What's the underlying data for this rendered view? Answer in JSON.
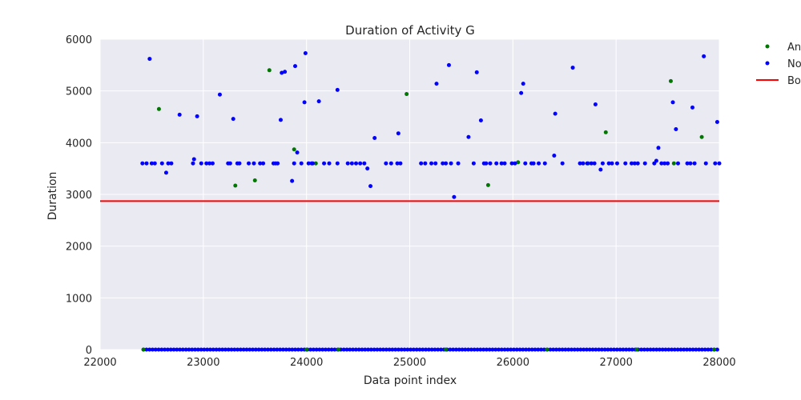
{
  "chart_data": {
    "type": "scatter",
    "title": "Duration of Activity G",
    "xlabel": "Data point index",
    "ylabel": "Duration",
    "xlim": [
      22000,
      28000
    ],
    "ylim": [
      0,
      6000
    ],
    "xticks": [
      22000,
      23000,
      24000,
      25000,
      26000,
      27000,
      28000
    ],
    "yticks": [
      0,
      1000,
      2000,
      3000,
      4000,
      5000,
      6000
    ],
    "grid": true,
    "legend_placement": "outside-top-right",
    "colors": {
      "anomaly": "#007700",
      "normal": "#0000ff",
      "boundary": "#ff0000",
      "background": "#eaeaf2",
      "grid": "#ffffff"
    },
    "series": [
      {
        "name": "An",
        "kind": "points",
        "color": "#007700",
        "points": [
          [
            22420,
            0
          ],
          [
            22570,
            4650
          ],
          [
            23310,
            3170
          ],
          [
            23500,
            3270
          ],
          [
            23640,
            5400
          ],
          [
            23880,
            3870
          ],
          [
            24000,
            0
          ],
          [
            24090,
            3600
          ],
          [
            24310,
            0
          ],
          [
            24970,
            4940
          ],
          [
            25350,
            0
          ],
          [
            25760,
            3180
          ],
          [
            26050,
            3620
          ],
          [
            26330,
            0
          ],
          [
            26730,
            3600
          ],
          [
            26900,
            4200
          ],
          [
            27200,
            0
          ],
          [
            27530,
            5190
          ],
          [
            27560,
            3600
          ],
          [
            27830,
            4110
          ],
          [
            27950,
            0
          ]
        ]
      },
      {
        "name": "No",
        "kind": "points",
        "color": "#0000ff",
        "points": [
          [
            22410,
            3600
          ],
          [
            22450,
            3600
          ],
          [
            22480,
            5620
          ],
          [
            22500,
            3600
          ],
          [
            22530,
            3600
          ],
          [
            22600,
            3600
          ],
          [
            22640,
            3420
          ],
          [
            22660,
            3600
          ],
          [
            22690,
            3600
          ],
          [
            22770,
            4540
          ],
          [
            22900,
            3600
          ],
          [
            22910,
            3680
          ],
          [
            22940,
            4510
          ],
          [
            22980,
            3600
          ],
          [
            23030,
            3600
          ],
          [
            23060,
            3600
          ],
          [
            23090,
            3600
          ],
          [
            23160,
            4930
          ],
          [
            23240,
            3600
          ],
          [
            23260,
            3600
          ],
          [
            23290,
            4460
          ],
          [
            23330,
            3600
          ],
          [
            23350,
            3600
          ],
          [
            23440,
            3600
          ],
          [
            23490,
            3600
          ],
          [
            23550,
            3600
          ],
          [
            23580,
            3600
          ],
          [
            23680,
            3600
          ],
          [
            23700,
            3600
          ],
          [
            23720,
            3600
          ],
          [
            23750,
            4440
          ],
          [
            23760,
            5350
          ],
          [
            23790,
            5370
          ],
          [
            23860,
            3260
          ],
          [
            23880,
            3600
          ],
          [
            23890,
            5480
          ],
          [
            23910,
            3810
          ],
          [
            23950,
            3600
          ],
          [
            23980,
            4780
          ],
          [
            23990,
            5730
          ],
          [
            24020,
            3600
          ],
          [
            24050,
            3600
          ],
          [
            24060,
            3600
          ],
          [
            24120,
            4800
          ],
          [
            24170,
            3600
          ],
          [
            24220,
            3600
          ],
          [
            24300,
            5020
          ],
          [
            24300,
            3600
          ],
          [
            24400,
            3600
          ],
          [
            24440,
            3600
          ],
          [
            24480,
            3600
          ],
          [
            24520,
            3600
          ],
          [
            24560,
            3600
          ],
          [
            24590,
            3500
          ],
          [
            24620,
            3160
          ],
          [
            24660,
            4090
          ],
          [
            24770,
            3600
          ],
          [
            24820,
            3600
          ],
          [
            24880,
            3600
          ],
          [
            24890,
            4180
          ],
          [
            24910,
            3600
          ],
          [
            25110,
            3600
          ],
          [
            25150,
            3600
          ],
          [
            25210,
            3600
          ],
          [
            25250,
            3600
          ],
          [
            25260,
            5140
          ],
          [
            25320,
            3600
          ],
          [
            25350,
            3600
          ],
          [
            25380,
            5500
          ],
          [
            25400,
            3600
          ],
          [
            25430,
            2950
          ],
          [
            25470,
            3600
          ],
          [
            25570,
            4110
          ],
          [
            25620,
            3600
          ],
          [
            25650,
            5360
          ],
          [
            25690,
            4430
          ],
          [
            25720,
            3600
          ],
          [
            25740,
            3600
          ],
          [
            25780,
            3600
          ],
          [
            25840,
            3600
          ],
          [
            25890,
            3600
          ],
          [
            25920,
            3600
          ],
          [
            25990,
            3600
          ],
          [
            26020,
            3600
          ],
          [
            26080,
            4960
          ],
          [
            26100,
            5140
          ],
          [
            26120,
            3600
          ],
          [
            26180,
            3600
          ],
          [
            26200,
            3600
          ],
          [
            26250,
            3600
          ],
          [
            26310,
            3600
          ],
          [
            26400,
            3750
          ],
          [
            26410,
            4560
          ],
          [
            26480,
            3600
          ],
          [
            26580,
            5450
          ],
          [
            26650,
            3600
          ],
          [
            26680,
            3600
          ],
          [
            26720,
            3600
          ],
          [
            26760,
            3600
          ],
          [
            26790,
            3600
          ],
          [
            26800,
            4740
          ],
          [
            26850,
            3480
          ],
          [
            26870,
            3600
          ],
          [
            26930,
            3600
          ],
          [
            26960,
            3600
          ],
          [
            27010,
            3600
          ],
          [
            27090,
            3600
          ],
          [
            27150,
            3600
          ],
          [
            27180,
            3600
          ],
          [
            27210,
            3600
          ],
          [
            27280,
            3600
          ],
          [
            27370,
            3600
          ],
          [
            27390,
            3650
          ],
          [
            27410,
            3900
          ],
          [
            27440,
            3600
          ],
          [
            27470,
            3600
          ],
          [
            27500,
            3600
          ],
          [
            27550,
            4780
          ],
          [
            27580,
            4260
          ],
          [
            27600,
            3600
          ],
          [
            27690,
            3600
          ],
          [
            27720,
            3600
          ],
          [
            27740,
            4680
          ],
          [
            27760,
            3600
          ],
          [
            27850,
            5670
          ],
          [
            27870,
            3600
          ],
          [
            27960,
            3600
          ],
          [
            27980,
            4400
          ],
          [
            28000,
            3600
          ]
        ]
      },
      {
        "name": "Bo",
        "kind": "hline",
        "color": "#ff0000",
        "y": 2870
      }
    ],
    "normal_zero_band": {
      "color": "#0000ff",
      "y": 0,
      "x_from": 22420,
      "x_to": 27980,
      "count": 190
    }
  }
}
